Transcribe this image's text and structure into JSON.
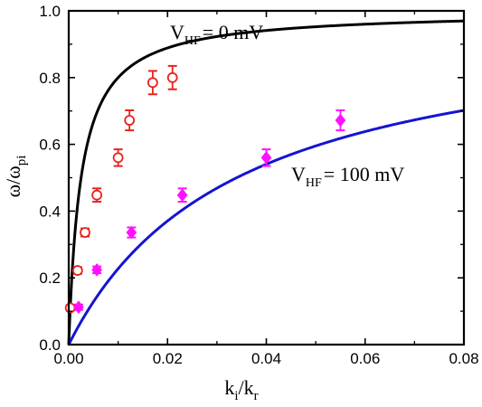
{
  "chart_data": {
    "type": "scatter",
    "x_axis": {
      "label_main": "k",
      "label_sub1": "i",
      "label_sep": "/k",
      "label_sub2": "r",
      "range": [
        0,
        0.08
      ],
      "ticks": [
        0.0,
        0.02,
        0.04,
        0.06,
        0.08
      ],
      "tick_labels": [
        "0.00",
        "0.02",
        "0.04",
        "0.06",
        "0.08"
      ]
    },
    "y_axis": {
      "label_main": "ω/ω",
      "label_sub": "pi",
      "range": [
        0,
        1.0
      ],
      "ticks": [
        0.0,
        0.2,
        0.4,
        0.6,
        0.8,
        1.0
      ],
      "tick_labels": [
        "0.0",
        "0.2",
        "0.4",
        "0.6",
        "0.8",
        "1.0"
      ]
    },
    "grid": false,
    "annotations": [
      {
        "main": "V",
        "sub": "HF",
        "rest": "= 0 mV"
      },
      {
        "main": "V",
        "sub": "HF",
        "rest": "= 100 mV"
      }
    ],
    "series": [
      {
        "marker": "open-circle",
        "color": "#e8231b",
        "points": [
          {
            "x": 0.0003,
            "y": 0.11,
            "err": 0.008
          },
          {
            "x": 0.0018,
            "y": 0.222,
            "err": 0.01
          },
          {
            "x": 0.0033,
            "y": 0.336,
            "err": 0.012
          },
          {
            "x": 0.0057,
            "y": 0.448,
            "err": 0.02
          },
          {
            "x": 0.01,
            "y": 0.56,
            "err": 0.025
          },
          {
            "x": 0.0123,
            "y": 0.672,
            "err": 0.03
          },
          {
            "x": 0.017,
            "y": 0.785,
            "err": 0.035
          },
          {
            "x": 0.021,
            "y": 0.8,
            "err": 0.035
          }
        ]
      },
      {
        "marker": "filled-diamond",
        "color": "#ff10ff",
        "points": [
          {
            "x": 0.002,
            "y": 0.112,
            "err": 0.008
          },
          {
            "x": 0.0057,
            "y": 0.224,
            "err": 0.01
          },
          {
            "x": 0.0127,
            "y": 0.336,
            "err": 0.015
          },
          {
            "x": 0.023,
            "y": 0.448,
            "err": 0.02
          },
          {
            "x": 0.04,
            "y": 0.56,
            "err": 0.025
          },
          {
            "x": 0.055,
            "y": 0.672,
            "err": 0.03
          }
        ]
      }
    ],
    "fit_curves": [
      {
        "color": "#000000",
        "coef_a": 0.0025
      },
      {
        "color": "#1414d2",
        "coef_a": 0.034
      }
    ]
  }
}
